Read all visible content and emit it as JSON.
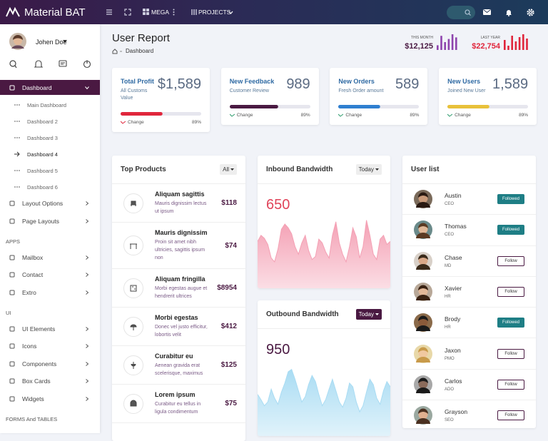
{
  "topbar": {
    "brand": "Material BAT",
    "menu": [
      "MEGA",
      "PROJECTS"
    ]
  },
  "user": {
    "name": "Johen Doe"
  },
  "sidebar": {
    "items": [
      {
        "label": "Dashboard",
        "kind": "active"
      },
      {
        "label": "Main Dashboard",
        "kind": "sub"
      },
      {
        "label": "Dashboard 2",
        "kind": "sub"
      },
      {
        "label": "Dashboard 3",
        "kind": "sub"
      },
      {
        "label": "Dashboard 4",
        "kind": "current"
      },
      {
        "label": "Dashboard 5",
        "kind": "sub"
      },
      {
        "label": "Dashboard 6",
        "kind": "sub"
      },
      {
        "label": "Layout Options",
        "kind": "item"
      },
      {
        "label": "Page Layouts",
        "kind": "item"
      },
      {
        "label": "APPS",
        "kind": "section"
      },
      {
        "label": "Mailbox",
        "kind": "item"
      },
      {
        "label": "Contact",
        "kind": "item"
      },
      {
        "label": "Extro",
        "kind": "item"
      },
      {
        "label": "UI",
        "kind": "section"
      },
      {
        "label": "UI Elements",
        "kind": "item"
      },
      {
        "label": "Icons",
        "kind": "item"
      },
      {
        "label": "Components",
        "kind": "item"
      },
      {
        "label": "Box Cards",
        "kind": "item"
      },
      {
        "label": "Widgets",
        "kind": "item"
      },
      {
        "label": "FORMS And TABLES",
        "kind": "section"
      }
    ]
  },
  "header": {
    "title": "User Report",
    "breadcrumb": "Dashboard",
    "stats": [
      {
        "label": "THIS MONTH",
        "value": "$12,125",
        "color": "#8e44ad",
        "bars": [
          6,
          18,
          10,
          14,
          20,
          16
        ]
      },
      {
        "label": "LAST YEAR",
        "value": "$22,754",
        "color": "#e0263c",
        "bars": [
          14,
          6,
          20,
          12,
          18,
          22,
          16
        ]
      }
    ]
  },
  "cards": [
    {
      "title": "Total Profit",
      "subtitle": "All Customs Value",
      "value": "$1,589",
      "change_label": "Change",
      "change": "89%",
      "progress": 52,
      "color": "#e0263c"
    },
    {
      "title": "New Feedback",
      "subtitle": "Customer Review",
      "value": 989,
      "change_label": "Change",
      "change": "89%",
      "progress": 60,
      "color": "#4a1942"
    },
    {
      "title": "New Orders",
      "subtitle": "Fresh Order amount",
      "value": 589,
      "change_label": "Change",
      "change": "89%",
      "progress": 52,
      "color": "#2f7fd0"
    },
    {
      "title": "New Users",
      "subtitle": "Joined New User",
      "value": "1,589",
      "change_label": "Change",
      "change": "89%",
      "progress": 52,
      "color": "#e8c13a"
    }
  ],
  "products": {
    "title": "Top Products",
    "filter": "All",
    "rows": [
      {
        "name": "Aliquam sagittis",
        "description": "Mauris dignissim lectus ut ipsum",
        "price": "$118"
      },
      {
        "name": "Mauris dignissim",
        "description": "Proin sit amet nibh ultricies, sagittis ipsum non",
        "price": "$74"
      },
      {
        "name": "Aliquam fringilla",
        "description": "Morbi egestas augue et hendrerit ultrices",
        "price": "$8954"
      },
      {
        "name": "Morbi egestas",
        "description": "Donec vel justo efficitur, lobortis velit",
        "price": "$412"
      },
      {
        "name": "Curabitur eu",
        "description": "Aenean gravida erat scelerisque, maximus",
        "price": "$125"
      },
      {
        "name": "Lorem ipsum",
        "description": "Curabitur eu tellus in ligula condimentum",
        "price": "$75"
      }
    ]
  },
  "bandwidth": [
    {
      "title": "Inbound Bandwidth",
      "filter": "Today",
      "value": 650,
      "color": "#f4a0b4",
      "text_color": "#e0445a",
      "values": [
        62,
        70,
        66,
        58,
        40,
        35,
        52,
        78,
        85,
        80,
        72,
        55,
        45,
        60,
        70,
        50,
        38,
        42,
        65,
        60,
        48,
        40,
        70,
        88,
        60,
        45,
        35,
        55,
        80,
        68,
        40,
        55,
        90,
        70,
        45,
        38,
        65,
        70,
        58,
        62
      ]
    },
    {
      "title": "Outbound Bandwidth",
      "filter": "Today",
      "value": 950,
      "color": "#a9dcf3",
      "text_color": "#4a1942",
      "values": [
        55,
        48,
        40,
        45,
        62,
        50,
        42,
        58,
        70,
        85,
        88,
        75,
        60,
        45,
        52,
        68,
        80,
        72,
        55,
        40,
        48,
        62,
        75,
        60,
        45,
        38,
        50,
        70,
        65,
        45,
        32,
        40,
        58,
        75,
        68,
        50,
        42,
        60,
        72,
        65
      ]
    }
  ],
  "users": {
    "title": "User list",
    "rows": [
      {
        "name": "Austin",
        "role": "CEO",
        "action": "Followed"
      },
      {
        "name": "Thomas",
        "role": "CEO",
        "action": "Followed"
      },
      {
        "name": "Chase",
        "role": "MD",
        "action": "Follow"
      },
      {
        "name": "Xavier",
        "role": "HR",
        "action": "Follow"
      },
      {
        "name": "Brody",
        "role": "HR",
        "action": "Followed"
      },
      {
        "name": "Jaxon",
        "role": "PMO",
        "action": "Follow"
      },
      {
        "name": "Carlos",
        "role": "ADO",
        "action": "Follow"
      },
      {
        "name": "Grayson",
        "role": "SEO",
        "action": "Follow"
      }
    ]
  }
}
